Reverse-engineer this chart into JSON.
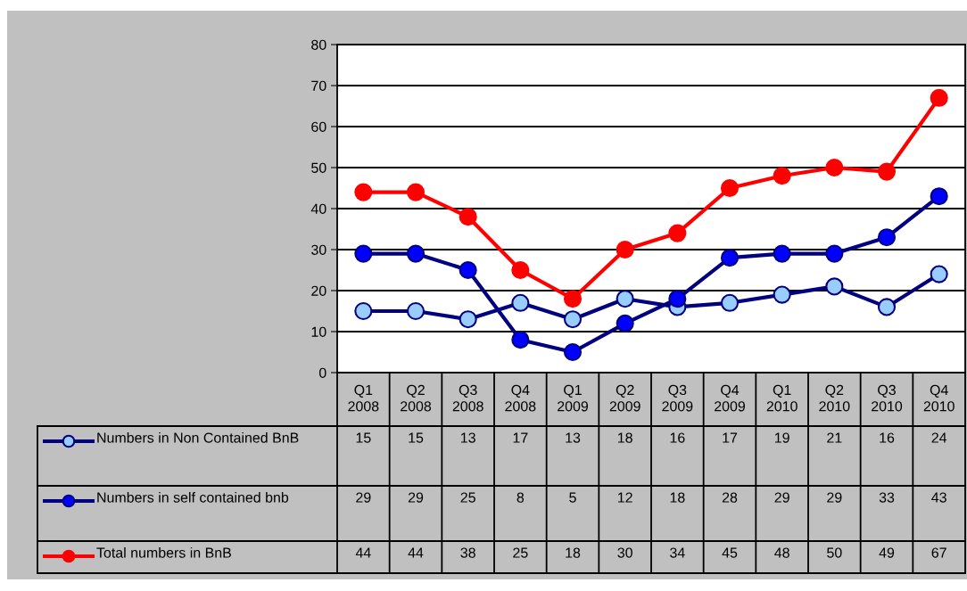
{
  "chart_data": {
    "type": "line",
    "categories": [
      "Q1\n2008",
      "Q2\n2008",
      "Q3\n2008",
      "Q4\n2008",
      "Q1\n2009",
      "Q2\n2009",
      "Q3\n2009",
      "Q4\n2009",
      "Q1\n2010",
      "Q2\n2010",
      "Q3\n2010",
      "Q4\n2010"
    ],
    "series": [
      {
        "name": "Numbers in Non Contained BnB",
        "color": "#000080",
        "colors": [
          "#99ccff",
          "#99ccff",
          "#99ccff",
          "#99ccff",
          "#99ccff",
          "#99ccff",
          "#99ccff",
          "#99ccff",
          "#99ccff",
          "#99ccff",
          "#99ccff",
          "#99ccff"
        ],
        "values": [
          15,
          15,
          13,
          17,
          13,
          18,
          16,
          17,
          19,
          21,
          16,
          24
        ]
      },
      {
        "name": "Numbers in self contained bnb",
        "color": "#000080",
        "colors": [
          "#0000ff",
          "#0000ff",
          "#0000ff",
          "#0000ff",
          "#0000ff",
          "#0000ff",
          "#0000ff",
          "#0000ff",
          "#0000ff",
          "#0000ff",
          "#0000ff",
          "#0000ff"
        ],
        "values": [
          29,
          29,
          25,
          8,
          5,
          12,
          18,
          28,
          29,
          29,
          33,
          43
        ]
      },
      {
        "name": "Total numbers in BnB",
        "color": "#ff0000",
        "values": [
          44,
          44,
          38,
          25,
          18,
          30,
          34,
          45,
          48,
          50,
          49,
          67
        ]
      }
    ],
    "ylim": [
      0,
      80
    ],
    "yticks": [
      0,
      10,
      20,
      30,
      40,
      50,
      60,
      70,
      80
    ],
    "grid": "y",
    "marker": "circle",
    "line_style": "solid",
    "legend": "bottom",
    "data_labels": true
  }
}
